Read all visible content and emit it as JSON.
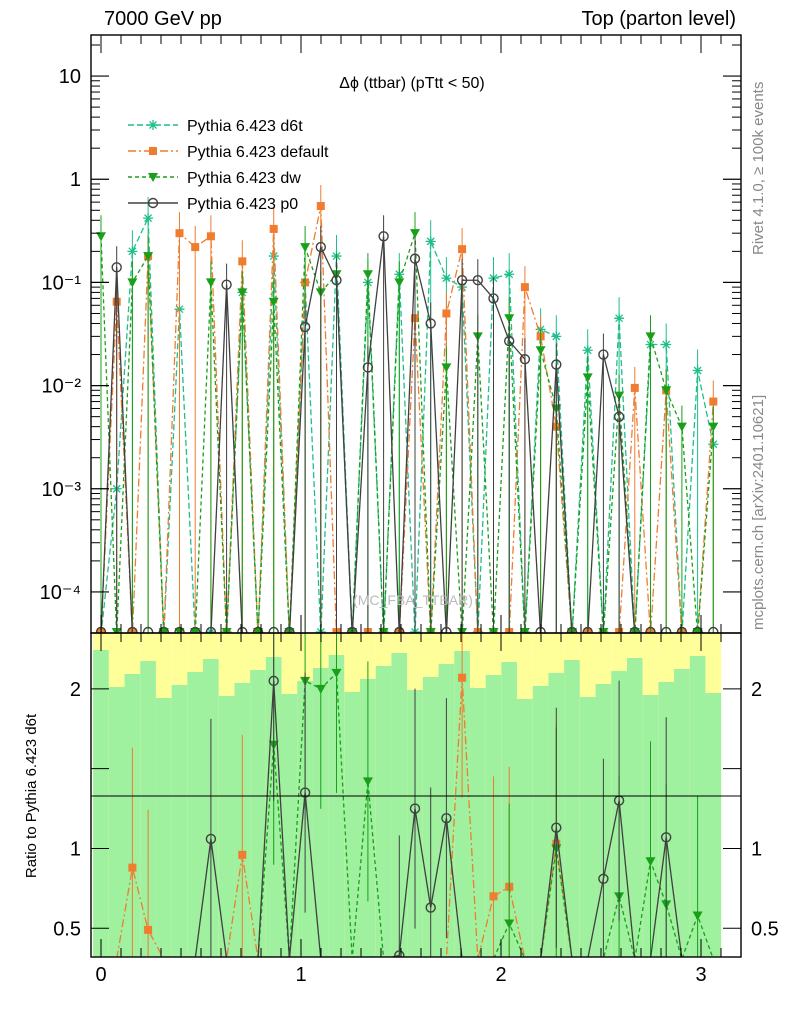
{
  "header": {
    "left": "7000 GeV pp",
    "right": "Top (parton level)"
  },
  "side": {
    "rivet": "Rivet 4.1.0, ≥ 100k events",
    "mcplots": "mcplots.cern.ch [arXiv:2401.10621]"
  },
  "chart_data": {
    "type": "line",
    "title": "Δϕ (ttbar) (pTtt < 50)",
    "watermark": "(MC_FBA_TTBAR)",
    "xlabel": "",
    "ylabel": "",
    "ratio_ylabel": "Ratio to Pythia 6.423 d6t",
    "xlim": [
      -0.05,
      3.2
    ],
    "ylim": [
      4e-05,
      25
    ],
    "ratio_ylim": [
      0.32,
      2.35
    ],
    "x_ticks": [
      "0",
      "1",
      "2",
      "3"
    ],
    "y_ticks": [
      "10",
      "1",
      "10⁻¹",
      "10⁻²",
      "10⁻³",
      "10⁻⁴"
    ],
    "ratio_ticks": [
      "2",
      "1",
      "0.5"
    ],
    "legend_position": "top-left",
    "x": [
      0.0,
      0.0785,
      0.157,
      0.2355,
      0.314,
      0.3925,
      0.471,
      0.5495,
      0.628,
      0.7065,
      0.785,
      0.8635,
      0.942,
      1.0205,
      1.099,
      1.1775,
      1.256,
      1.3345,
      1.413,
      1.4915,
      1.57,
      1.6485,
      1.727,
      1.8055,
      1.884,
      1.9625,
      2.041,
      2.1195,
      2.198,
      2.2765,
      2.355,
      2.4335,
      2.512,
      2.5905,
      2.669,
      2.7475,
      2.826,
      2.9045,
      2.983,
      3.0615
    ],
    "series": [
      {
        "name": "Pythia 6.423 d6t",
        "color": "#1ebf8c",
        "marker": "star",
        "dash": "6,3",
        "values": [
          0,
          0.001,
          0.2,
          0.42,
          0,
          0.055,
          0,
          0,
          0,
          0.08,
          0,
          0.18,
          0,
          0.1,
          0,
          0.18,
          0,
          0.1,
          0,
          0.12,
          0,
          0.25,
          0.11,
          0.09,
          0,
          0.11,
          0.12,
          0,
          0.035,
          0.03,
          0,
          0.022,
          0,
          0.045,
          0,
          0.025,
          0.025,
          0,
          0.014,
          0.0027
        ],
        "ratio": [
          null,
          null,
          null,
          null,
          null,
          null,
          null,
          null,
          null,
          null,
          null,
          null,
          null,
          null,
          null,
          null,
          null,
          null,
          null,
          null,
          null,
          null,
          null,
          null,
          null,
          null,
          null,
          null,
          null,
          null,
          null,
          null,
          null,
          null,
          null,
          null,
          null,
          null,
          null,
          null
        ]
      },
      {
        "name": "Pythia 6.423 default",
        "color": "#f07c30",
        "marker": "square",
        "dash": "8,3,2,3",
        "values": [
          0,
          0.065,
          0,
          0.18,
          0,
          0.3,
          0.22,
          0.28,
          0,
          0.16,
          0,
          0.33,
          0,
          0.1,
          0.55,
          0,
          0,
          0,
          0,
          0,
          0.045,
          0,
          0.05,
          0.21,
          0,
          0,
          0,
          0.09,
          0.03,
          0.004,
          0,
          0,
          0,
          0,
          0.0095,
          0,
          0.009,
          0,
          0,
          0.007
        ],
        "ratio": [
          null,
          null,
          0.88,
          0.49,
          null,
          null,
          null,
          null,
          null,
          0.96,
          null,
          null,
          null,
          null,
          null,
          null,
          null,
          null,
          null,
          null,
          null,
          null,
          null,
          2.07,
          null,
          0.7,
          0.76,
          null,
          null,
          1.03,
          null,
          null,
          null,
          null,
          null,
          null,
          null,
          null,
          null,
          null
        ]
      },
      {
        "name": "Pythia 6.423 dw",
        "color": "#18a018",
        "marker": "triangle-down",
        "dash": "4,3",
        "values": [
          0.28,
          0,
          0.1,
          0.18,
          0,
          0,
          0,
          0.1,
          0,
          0.08,
          0,
          0.065,
          0,
          0.22,
          0.08,
          0.12,
          0,
          0.12,
          0,
          0.1,
          0.3,
          0,
          0.015,
          0,
          0.03,
          0,
          0.045,
          0,
          0.022,
          0.006,
          0,
          0.012,
          0,
          0.008,
          0,
          0.03,
          0.009,
          0.004,
          0,
          0.004
        ],
        "ratio": [
          null,
          null,
          null,
          null,
          null,
          null,
          null,
          null,
          null,
          null,
          null,
          1.65,
          null,
          2.05,
          2.0,
          2.1,
          null,
          1.42,
          null,
          null,
          null,
          null,
          null,
          null,
          null,
          null,
          0.53,
          null,
          null,
          1.0,
          null,
          null,
          null,
          0.7,
          null,
          0.92,
          0.65,
          null,
          0.58,
          null
        ]
      },
      {
        "name": "Pythia 6.423 p0",
        "color": "#404040",
        "marker": "circle-open",
        "dash": "",
        "values": [
          0,
          0.14,
          0,
          0,
          0,
          0,
          0,
          0,
          0.095,
          0,
          0,
          0,
          0,
          0.037,
          0.22,
          0.105,
          0,
          0.015,
          0.28,
          0,
          0.17,
          0.04,
          0,
          0.105,
          0.105,
          0.07,
          0.027,
          0.018,
          0,
          0.016,
          0,
          0,
          0.02,
          0.005,
          0,
          0,
          0,
          0,
          0,
          0
        ],
        "ratio": [
          null,
          null,
          null,
          null,
          null,
          null,
          null,
          1.06,
          null,
          null,
          null,
          2.05,
          null,
          1.35,
          null,
          null,
          null,
          null,
          null,
          0.33,
          1.25,
          0.63,
          1.19,
          null,
          null,
          null,
          null,
          null,
          null,
          1.13,
          null,
          null,
          0.81,
          1.3,
          null,
          null,
          1.07,
          null,
          null,
          null
        ]
      }
    ]
  }
}
